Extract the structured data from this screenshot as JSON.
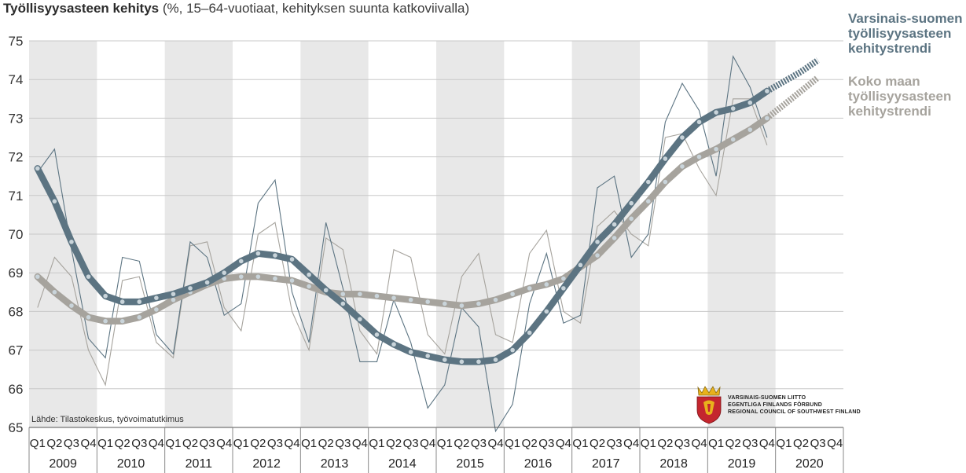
{
  "title": {
    "main": "Työllisyysasteen kehitys",
    "sub": "(%, 15–64-vuotiaat, kehityksen suunta katkoviivalla)"
  },
  "source": "Lähde: Tilastokeskus, työvoimatutkimus",
  "logo": {
    "line1": "VARSINAIS-SUOMEN LIITTO",
    "line2": "EGENTLIGA FINLANDS FÖRBUND",
    "line3": "REGIONAL COUNCIL OF SOUTHWEST FINLAND",
    "icon": "coat-of-arms-icon"
  },
  "legend": {
    "regional": "Varsinais-suomen\ntyöllisyysasteen\nkehitystrendi",
    "national": "Koko maan\ntyöllisyysasteen\nkehitystrendi"
  },
  "colors": {
    "regional": "#5c7482",
    "national": "#a6a39d",
    "band": "#e8e8e8",
    "grid": "#c8c8c8",
    "dot": "#c9d4da"
  },
  "chart_data": {
    "type": "line",
    "years": [
      "2009",
      "2010",
      "2011",
      "2012",
      "2013",
      "2014",
      "2015",
      "2016",
      "2017",
      "2018",
      "2019",
      "2020"
    ],
    "quarters": [
      "Q1",
      "Q2",
      "Q3",
      "Q4"
    ],
    "ylim": [
      65,
      75
    ],
    "yticks": [
      65,
      66,
      67,
      68,
      69,
      70,
      71,
      72,
      73,
      74,
      75
    ],
    "grid": true,
    "series": [
      {
        "key": "regional_trend",
        "style": "trend",
        "values": [
          71.7,
          70.85,
          69.8,
          68.9,
          68.4,
          68.25,
          68.25,
          68.35,
          68.45,
          68.6,
          68.75,
          69.0,
          69.3,
          69.5,
          69.45,
          69.35,
          68.95,
          68.55,
          68.2,
          67.8,
          67.4,
          67.15,
          66.95,
          66.85,
          66.75,
          66.7,
          66.7,
          66.75,
          67.0,
          67.45,
          68.0,
          68.6,
          69.2,
          69.8,
          70.25,
          70.8,
          71.35,
          71.95,
          72.5,
          72.9,
          73.15,
          73.25,
          73.4,
          73.7
        ],
        "projection": [
          73.7,
          73.95,
          74.2,
          74.5
        ]
      },
      {
        "key": "national_trend",
        "style": "trend",
        "values": [
          68.9,
          68.5,
          68.15,
          67.85,
          67.75,
          67.75,
          67.85,
          68.05,
          68.3,
          68.5,
          68.7,
          68.85,
          68.9,
          68.9,
          68.85,
          68.8,
          68.65,
          68.5,
          68.45,
          68.45,
          68.4,
          68.35,
          68.3,
          68.25,
          68.2,
          68.15,
          68.2,
          68.3,
          68.45,
          68.6,
          68.7,
          68.85,
          69.15,
          69.45,
          69.9,
          70.4,
          70.85,
          71.35,
          71.75,
          72.0,
          72.2,
          72.45,
          72.7,
          73.0
        ],
        "projection": [
          73.0,
          73.35,
          73.7,
          74.05
        ]
      },
      {
        "key": "regional_raw",
        "style": "raw",
        "values": [
          71.6,
          72.2,
          69.6,
          67.3,
          66.8,
          69.4,
          69.3,
          67.4,
          66.9,
          69.8,
          69.4,
          67.9,
          68.2,
          70.8,
          71.4,
          68.5,
          67.2,
          70.3,
          68.6,
          66.7,
          66.7,
          68.3,
          67.2,
          65.5,
          66.1,
          68.1,
          67.6,
          64.9,
          65.6,
          68.2,
          69.5,
          67.7,
          67.9,
          71.2,
          71.5,
          69.4,
          70.0,
          72.9,
          73.9,
          73.2,
          71.5,
          74.6,
          73.8,
          72.5
        ]
      },
      {
        "key": "national_raw",
        "style": "raw",
        "values": [
          68.1,
          69.4,
          68.9,
          67.0,
          66.1,
          68.8,
          68.9,
          67.2,
          66.8,
          69.7,
          69.8,
          68.1,
          67.5,
          70.0,
          70.3,
          68.0,
          67.0,
          69.9,
          69.6,
          67.5,
          66.9,
          69.6,
          69.4,
          67.4,
          66.9,
          68.9,
          69.5,
          67.4,
          67.2,
          69.5,
          70.1,
          68.0,
          67.7,
          70.2,
          70.6,
          70.0,
          69.7,
          72.5,
          72.6,
          71.7,
          71.0,
          73.5,
          73.5,
          72.3
        ]
      }
    ]
  }
}
